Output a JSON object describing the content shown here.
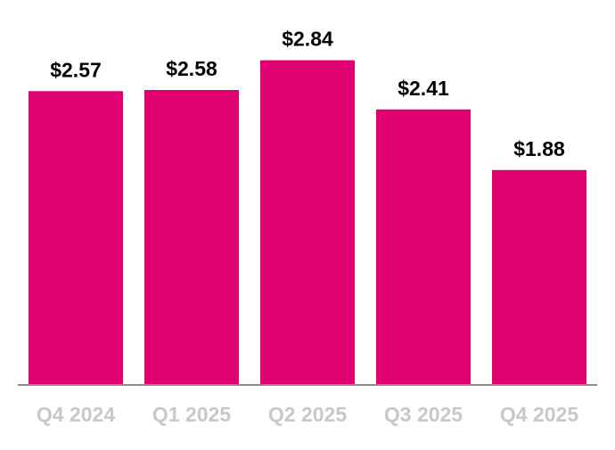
{
  "chart_data": {
    "type": "bar",
    "categories": [
      "Q4 2024",
      "Q1 2025",
      "Q2 2025",
      "Q3 2025",
      "Q4 2025"
    ],
    "values": [
      2.57,
      2.58,
      2.84,
      2.41,
      1.88
    ],
    "value_labels": [
      "$2.57",
      "$2.58",
      "$2.84",
      "$2.41",
      "$1.88"
    ],
    "title": "",
    "xlabel": "",
    "ylabel": "",
    "ylim": [
      0,
      3.2
    ],
    "grid": false,
    "legend": "none",
    "colors": {
      "bar": "#e0006f",
      "axis": "#8c8c8c",
      "tick_label": "#c8c8c8",
      "value_label": "#000000"
    }
  }
}
